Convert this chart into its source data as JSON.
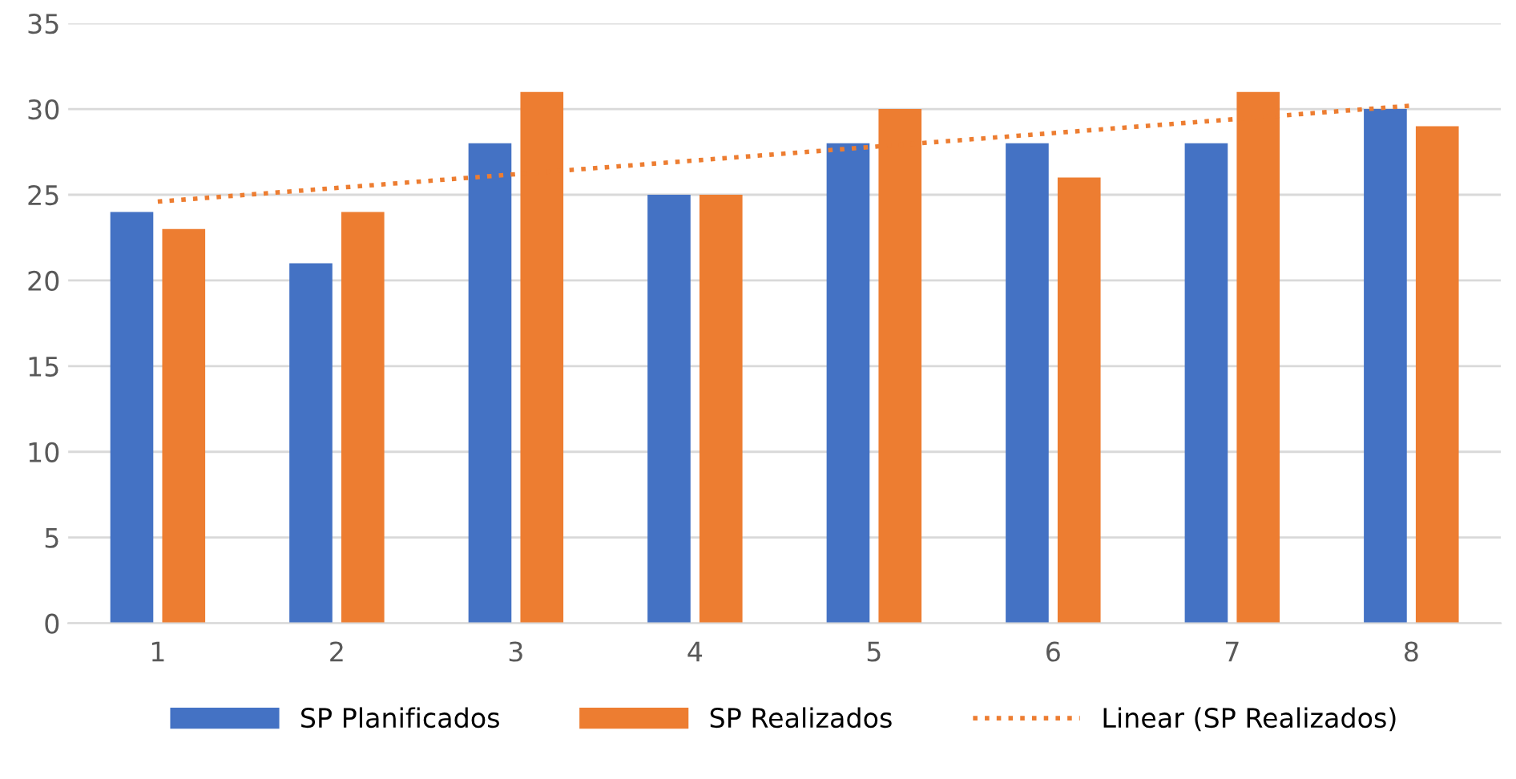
{
  "chart_data": {
    "type": "bar",
    "categories": [
      "1",
      "2",
      "3",
      "4",
      "5",
      "6",
      "7",
      "8"
    ],
    "series": [
      {
        "name": "SP Planificados",
        "color": "#4472c4",
        "values": [
          24,
          21,
          28,
          25,
          28,
          28,
          28,
          30
        ]
      },
      {
        "name": "SP Realizados",
        "color": "#ed7d31",
        "values": [
          23,
          24,
          31,
          25,
          30,
          26,
          31,
          29
        ]
      },
      {
        "name": "Linear (SP Realizados)",
        "type": "line",
        "color": "#ed7d31",
        "line_style": "dotted",
        "x": [
          "1",
          "8"
        ],
        "values": [
          24.6,
          30.2
        ]
      }
    ],
    "ylim": [
      0,
      35
    ],
    "yticks": [
      0,
      5,
      10,
      15,
      20,
      25,
      30,
      35
    ],
    "grid": "y",
    "legend": "bottom",
    "marker": "none"
  }
}
